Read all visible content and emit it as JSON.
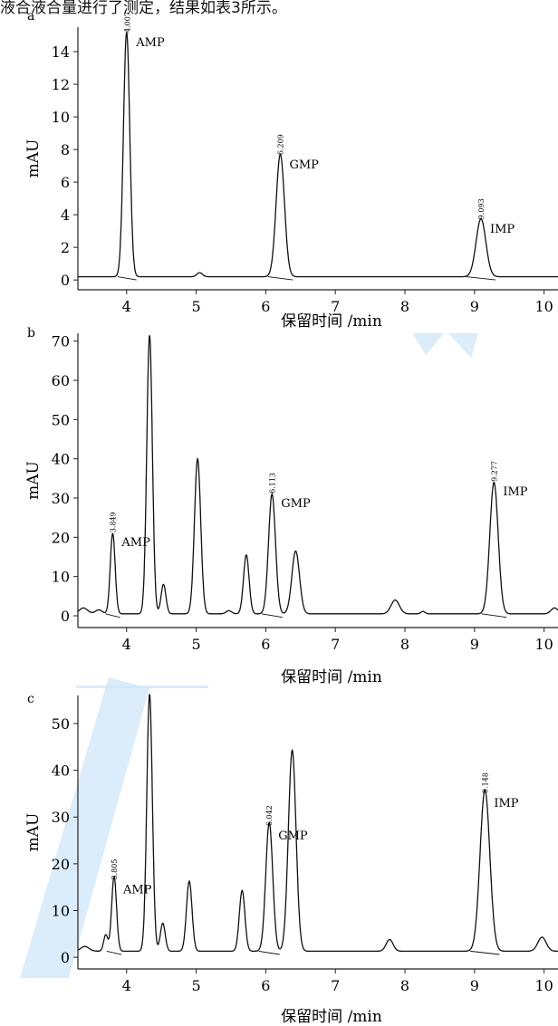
{
  "header_text": "液合液合量进行了测定，结果如表3所示。",
  "chart_data": [
    {
      "type": "line",
      "panel_label": "a",
      "xlabel": "保留时间 /min",
      "ylabel": "mAU",
      "xlim": [
        3.3,
        10.2
      ],
      "ylim": [
        -0.6,
        15.5
      ],
      "x_ticks": [
        4,
        5,
        6,
        7,
        8,
        9,
        10
      ],
      "y_ticks": [
        0,
        2,
        4,
        6,
        8,
        10,
        12,
        14
      ],
      "baseline": 0.2,
      "peaks": [
        {
          "rt": 4.0,
          "height": 15.0,
          "width": 0.045
        },
        {
          "rt": 5.05,
          "height": 0.25,
          "width": 0.04
        },
        {
          "rt": 6.209,
          "height": 7.5,
          "width": 0.06
        },
        {
          "rt": 9.093,
          "height": 3.55,
          "width": 0.07
        }
      ],
      "annotations": [
        {
          "name": "AMP",
          "rt": "4.007",
          "x": 4.007,
          "y": 15.0
        },
        {
          "name": "GMP",
          "rt": "6.209",
          "x": 6.209,
          "y": 7.5
        },
        {
          "name": "IMP",
          "rt": "9.093",
          "x": 9.093,
          "y": 3.55
        }
      ]
    },
    {
      "type": "line",
      "panel_label": "b",
      "xlabel": "保留时间 /min",
      "ylabel": "mAU",
      "xlim": [
        3.3,
        10.2
      ],
      "ylim": [
        -3,
        72
      ],
      "x_ticks": [
        4,
        5,
        6,
        7,
        8,
        9,
        10
      ],
      "y_ticks": [
        0,
        10,
        20,
        30,
        40,
        50,
        60,
        70
      ],
      "baseline": 0.5,
      "peaks": [
        {
          "rt": 3.38,
          "height": 1.5,
          "width": 0.06
        },
        {
          "rt": 3.6,
          "height": 1.0,
          "width": 0.05
        },
        {
          "rt": 3.8,
          "height": 20.5,
          "width": 0.035
        },
        {
          "rt": 4.33,
          "height": 71.0,
          "width": 0.04
        },
        {
          "rt": 4.53,
          "height": 7.5,
          "width": 0.035
        },
        {
          "rt": 5.02,
          "height": 39.5,
          "width": 0.045
        },
        {
          "rt": 5.47,
          "height": 0.8,
          "width": 0.04
        },
        {
          "rt": 5.72,
          "height": 15.0,
          "width": 0.04
        },
        {
          "rt": 6.09,
          "height": 30.5,
          "width": 0.05
        },
        {
          "rt": 6.43,
          "height": 16.0,
          "width": 0.055
        },
        {
          "rt": 7.86,
          "height": 3.5,
          "width": 0.06
        },
        {
          "rt": 8.26,
          "height": 0.6,
          "width": 0.03
        },
        {
          "rt": 9.28,
          "height": 33.5,
          "width": 0.06
        },
        {
          "rt": 10.15,
          "height": 1.5,
          "width": 0.05
        }
      ],
      "annotations": [
        {
          "name": "AMP",
          "rt": "3.849",
          "x": 3.8,
          "y": 20.5
        },
        {
          "name": "GMP",
          "rt": "6.113",
          "x": 6.09,
          "y": 30.5
        },
        {
          "name": "IMP",
          "rt": "9.277",
          "x": 9.28,
          "y": 33.5
        }
      ]
    },
    {
      "type": "line",
      "panel_label": "c",
      "xlabel": "保留时间 /min",
      "ylabel": "mAU",
      "xlim": [
        3.3,
        10.2
      ],
      "ylim": [
        -2.5,
        56
      ],
      "x_ticks": [
        4,
        5,
        6,
        7,
        8,
        9,
        10
      ],
      "y_ticks": [
        0,
        10,
        20,
        30,
        40,
        50
      ],
      "baseline": 1.3,
      "peaks": [
        {
          "rt": 3.4,
          "height": 1.0,
          "width": 0.06
        },
        {
          "rt": 3.7,
          "height": 3.5,
          "width": 0.03
        },
        {
          "rt": 3.82,
          "height": 16.0,
          "width": 0.035
        },
        {
          "rt": 4.33,
          "height": 55.0,
          "width": 0.04
        },
        {
          "rt": 4.52,
          "height": 6.0,
          "width": 0.035
        },
        {
          "rt": 4.9,
          "height": 15.0,
          "width": 0.04
        },
        {
          "rt": 5.66,
          "height": 13.0,
          "width": 0.04
        },
        {
          "rt": 6.05,
          "height": 27.5,
          "width": 0.05
        },
        {
          "rt": 6.38,
          "height": 43.0,
          "width": 0.055
        },
        {
          "rt": 7.78,
          "height": 2.5,
          "width": 0.05
        },
        {
          "rt": 9.15,
          "height": 34.5,
          "width": 0.07
        },
        {
          "rt": 9.97,
          "height": 3.0,
          "width": 0.06
        }
      ],
      "annotations": [
        {
          "name": "AMP",
          "rt": "3.805",
          "x": 3.82,
          "y": 16.0
        },
        {
          "name": "GMP",
          "rt": "6.042",
          "x": 6.05,
          "y": 27.5
        },
        {
          "name": "IMP",
          "rt": "9.148",
          "x": 9.15,
          "y": 34.5
        }
      ]
    }
  ]
}
